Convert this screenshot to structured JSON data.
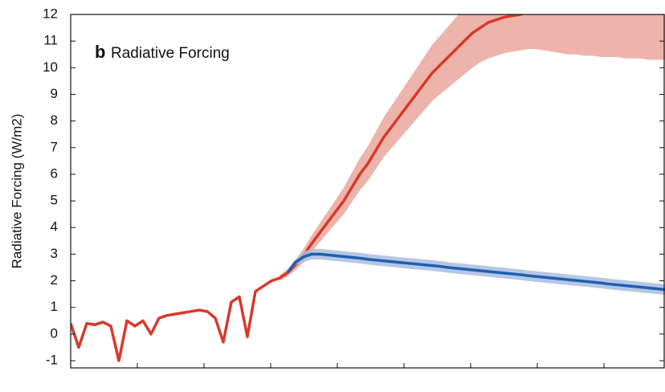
{
  "chart_data": {
    "type": "line",
    "panel_label": "b",
    "title": "Radiative Forcing",
    "y_label": "Radiative Forcing (W/m2)",
    "categories": [
      null,
      null,
      null,
      null,
      null,
      null,
      null,
      null,
      null,
      null,
      null,
      null,
      null,
      null,
      null,
      null,
      null,
      null,
      null,
      null,
      null,
      null,
      null,
      null,
      null,
      null,
      null,
      null,
      null,
      null,
      null,
      null,
      null,
      null,
      null,
      null,
      null,
      null,
      null,
      null,
      null,
      null,
      null,
      null,
      null,
      null,
      null,
      null,
      null,
      null,
      null,
      null,
      null,
      null,
      null,
      null,
      null,
      null,
      null,
      null,
      null,
      null,
      null,
      null,
      null,
      null,
      null,
      null,
      null,
      null,
      null,
      null,
      null,
      null,
      null
    ],
    "ylim": [
      -1.27,
      12
    ],
    "yticks": [
      -1,
      0,
      1,
      2,
      3,
      4,
      5,
      6,
      7,
      8,
      9,
      10,
      11,
      12
    ],
    "series": [
      {
        "color": "#d63a2c",
        "band_color": "#eaa79c",
        "values": [
          0.4,
          -0.5,
          0.4,
          0.35,
          0.45,
          0.3,
          -1.0,
          0.5,
          0.3,
          0.5,
          0.0,
          0.6,
          0.7,
          0.75,
          0.8,
          0.85,
          0.9,
          0.85,
          0.6,
          -0.3,
          1.2,
          1.4,
          -0.1,
          1.6,
          1.8,
          2.0,
          2.1,
          2.3,
          2.6,
          2.95,
          3.4,
          3.8,
          4.2,
          4.6,
          5.0,
          5.5,
          6.0,
          6.4,
          6.9,
          7.4,
          7.8,
          8.2,
          8.6,
          9.0,
          9.4,
          9.8,
          10.1,
          10.4,
          10.7,
          11.0,
          11.3,
          11.5,
          11.7,
          11.8,
          11.9,
          11.95,
          12.0,
          12.1,
          null,
          null,
          null,
          null,
          null,
          null,
          null,
          null,
          null,
          null,
          null,
          null,
          null,
          null,
          null,
          null,
          null
        ],
        "low": [
          null,
          null,
          null,
          null,
          null,
          null,
          null,
          null,
          null,
          null,
          null,
          null,
          null,
          null,
          null,
          null,
          null,
          null,
          null,
          null,
          null,
          null,
          null,
          null,
          null,
          null,
          2.0,
          2.15,
          2.4,
          2.7,
          3.1,
          3.45,
          3.8,
          4.15,
          4.5,
          4.95,
          5.4,
          5.75,
          6.2,
          6.65,
          7.0,
          7.35,
          7.7,
          8.05,
          8.4,
          8.75,
          9.0,
          9.25,
          9.5,
          9.75,
          10.0,
          10.2,
          10.35,
          10.45,
          10.55,
          10.6,
          10.65,
          10.7,
          10.7,
          10.65,
          10.6,
          10.55,
          10.5,
          10.5,
          10.45,
          10.45,
          10.4,
          10.4,
          10.4,
          10.35,
          10.35,
          10.35,
          10.3,
          10.3,
          10.3
        ],
        "high": [
          null,
          null,
          null,
          null,
          null,
          null,
          null,
          null,
          null,
          null,
          null,
          null,
          null,
          null,
          null,
          null,
          null,
          null,
          null,
          null,
          null,
          null,
          null,
          null,
          null,
          null,
          2.2,
          2.45,
          2.8,
          3.2,
          3.7,
          4.15,
          4.6,
          5.05,
          5.5,
          6.05,
          6.6,
          7.05,
          7.6,
          8.15,
          8.6,
          9.05,
          9.5,
          9.95,
          10.4,
          10.85,
          11.2,
          11.55,
          11.9,
          12.25,
          12.6,
          12.8,
          13,
          13,
          13,
          13,
          13,
          13,
          13,
          13,
          13,
          13,
          13,
          13,
          13,
          13,
          13,
          13,
          13,
          13,
          13,
          13,
          13,
          13,
          13
        ]
      },
      {
        "color": "#1f5fae",
        "band_color": "#a9bde0",
        "values": [
          null,
          null,
          null,
          null,
          null,
          null,
          null,
          null,
          null,
          null,
          null,
          null,
          null,
          null,
          null,
          null,
          null,
          null,
          null,
          null,
          null,
          null,
          null,
          null,
          null,
          null,
          null,
          2.3,
          2.7,
          2.9,
          3.0,
          3.0,
          2.97,
          2.94,
          2.91,
          2.88,
          2.85,
          2.81,
          2.78,
          2.75,
          2.72,
          2.69,
          2.66,
          2.63,
          2.6,
          2.57,
          2.54,
          2.5,
          2.47,
          2.44,
          2.41,
          2.38,
          2.35,
          2.32,
          2.29,
          2.26,
          2.23,
          2.19,
          2.16,
          2.13,
          2.1,
          2.07,
          2.04,
          2.01,
          1.98,
          1.95,
          1.92,
          1.88,
          1.85,
          1.82,
          1.79,
          1.76,
          1.73,
          1.7,
          1.67
        ],
        "low": [
          null,
          null,
          null,
          null,
          null,
          null,
          null,
          null,
          null,
          null,
          null,
          null,
          null,
          null,
          null,
          null,
          null,
          null,
          null,
          null,
          null,
          null,
          null,
          null,
          null,
          null,
          null,
          2.25,
          2.6,
          2.7,
          2.8,
          2.8,
          2.77,
          2.74,
          2.71,
          2.68,
          2.65,
          2.61,
          2.58,
          2.55,
          2.52,
          2.49,
          2.46,
          2.43,
          2.4,
          2.37,
          2.34,
          2.3,
          2.27,
          2.24,
          2.21,
          2.18,
          2.15,
          2.12,
          2.09,
          2.06,
          2.03,
          1.99,
          1.96,
          1.93,
          1.9,
          1.87,
          1.84,
          1.81,
          1.78,
          1.75,
          1.72,
          1.68,
          1.65,
          1.62,
          1.59,
          1.56,
          1.53,
          1.5,
          1.47
        ],
        "high": [
          null,
          null,
          null,
          null,
          null,
          null,
          null,
          null,
          null,
          null,
          null,
          null,
          null,
          null,
          null,
          null,
          null,
          null,
          null,
          null,
          null,
          null,
          null,
          null,
          null,
          null,
          null,
          2.35,
          2.8,
          3.1,
          3.2,
          3.2,
          3.17,
          3.14,
          3.11,
          3.08,
          3.05,
          3.01,
          2.98,
          2.95,
          2.92,
          2.89,
          2.86,
          2.83,
          2.8,
          2.77,
          2.74,
          2.7,
          2.67,
          2.64,
          2.61,
          2.58,
          2.55,
          2.52,
          2.49,
          2.46,
          2.43,
          2.39,
          2.36,
          2.33,
          2.3,
          2.27,
          2.24,
          2.21,
          2.18,
          2.15,
          2.12,
          2.08,
          2.05,
          2.02,
          1.99,
          1.96,
          1.93,
          1.9,
          1.87
        ]
      }
    ]
  }
}
